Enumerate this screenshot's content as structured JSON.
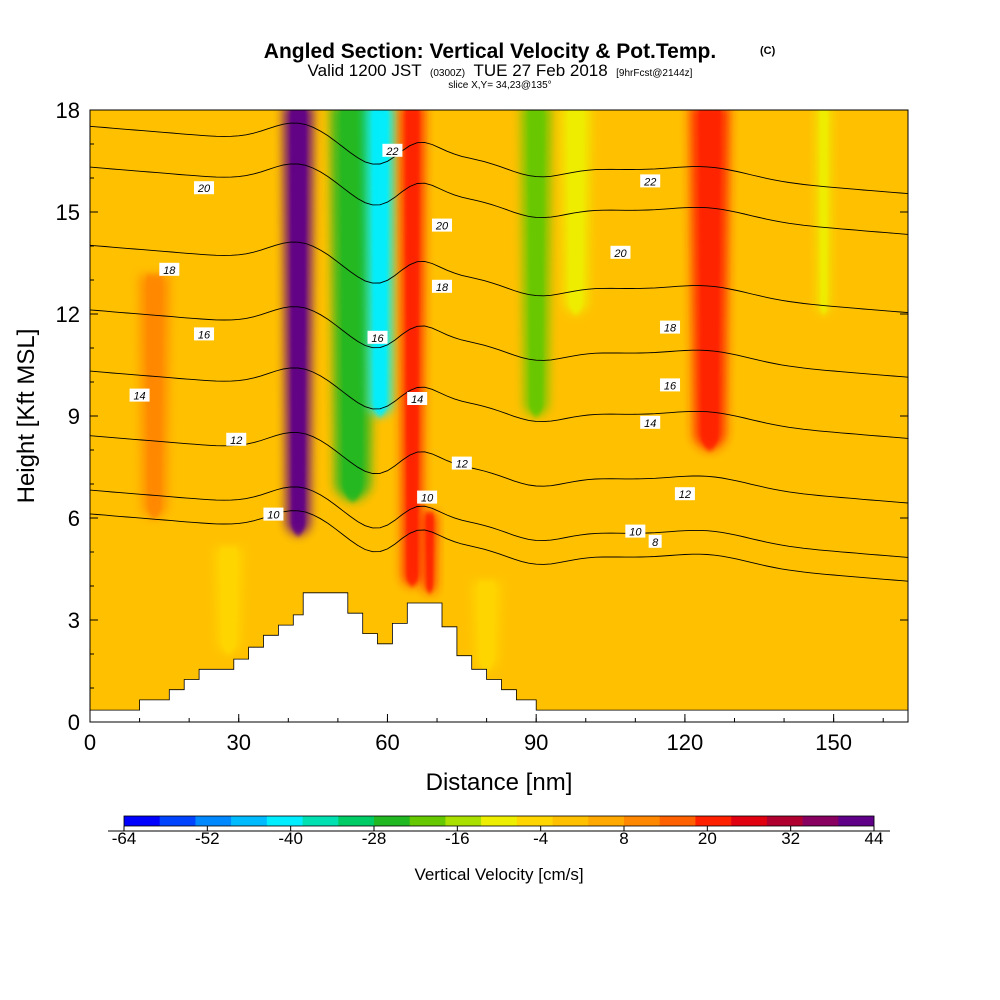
{
  "header": {
    "title": "Angled Section: Vertical Velocity & Pot.Temp.",
    "title_mark": "(C)",
    "valid_a": "Valid 1200 JST",
    "valid_b": "(0300Z)",
    "valid_c": "TUE 27 Feb 2018",
    "valid_d": "[9hrFcst@2144z]",
    "slice": "slice X,Y= 34,23@135°"
  },
  "chart_data": {
    "type": "heatmap",
    "xlabel": "Distance [nm]",
    "ylabel": "Height [Kft MSL]",
    "xlim": [
      0,
      165
    ],
    "ylim": [
      0,
      18
    ],
    "x_ticks": [
      0,
      30,
      60,
      90,
      120,
      150
    ],
    "y_ticks": [
      0,
      3,
      6,
      9,
      12,
      15,
      18
    ],
    "colorbar": {
      "title": "Vertical Velocity [cm/s]",
      "labels": [
        "-64",
        "-52",
        "-40",
        "-28",
        "-16",
        "-4",
        "8",
        "20",
        "32",
        "44"
      ],
      "min": -64,
      "max": 44,
      "colors": [
        "#0000ff",
        "#0044ff",
        "#0088ff",
        "#00bbff",
        "#00eeff",
        "#00e0b0",
        "#00cc66",
        "#22b822",
        "#66c800",
        "#aae000",
        "#eeee00",
        "#ffd600",
        "#ffc000",
        "#ffa800",
        "#ff8800",
        "#ff6000",
        "#ff2000",
        "#e00010",
        "#b00030",
        "#880060",
        "#600088"
      ]
    },
    "velocity_features": [
      {
        "x": 42,
        "w": 3,
        "z_bottom": 5.5,
        "z_top": 18,
        "value": 40
      },
      {
        "x": 53,
        "w": 4.5,
        "z_bottom": 6.5,
        "z_top": 18,
        "value": -28
      },
      {
        "x": 58.5,
        "w": 3,
        "z_bottom": 9,
        "z_top": 18,
        "value": -40
      },
      {
        "x": 65,
        "w": 2.5,
        "z_bottom": 4,
        "z_top": 18,
        "value": 22
      },
      {
        "x": 68.5,
        "w": 1.5,
        "z_bottom": 3.8,
        "z_top": 6,
        "value": 22
      },
      {
        "x": 90,
        "w": 3,
        "z_bottom": 9,
        "z_top": 18,
        "value": -22
      },
      {
        "x": 98,
        "w": 3,
        "z_bottom": 12,
        "z_top": 18,
        "value": -12
      },
      {
        "x": 125,
        "w": 4,
        "z_bottom": 8,
        "z_top": 18,
        "value": 22
      },
      {
        "x": 148,
        "w": 1.5,
        "z_bottom": 12,
        "z_top": 18,
        "value": -12
      },
      {
        "x": 13,
        "w": 3,
        "z_bottom": 6,
        "z_top": 13,
        "value": 12
      },
      {
        "x": 28,
        "w": 3,
        "z_bottom": 2,
        "z_top": 5,
        "value": -3
      },
      {
        "x": 80,
        "w": 3,
        "z_bottom": 1.5,
        "z_top": 4,
        "value": -3
      }
    ],
    "theta_levels": [
      {
        "level": 8,
        "label": "8",
        "base": 5.4
      },
      {
        "level": 10,
        "label": "10",
        "base": 6.1
      },
      {
        "level": 12,
        "label": "12",
        "base": 7.7
      },
      {
        "level": 14,
        "label": "14",
        "base": 9.6
      },
      {
        "level": 16,
        "label": "16",
        "base": 11.4
      },
      {
        "level": 18,
        "label": "18",
        "base": 13.3
      },
      {
        "level": 20,
        "label": "20",
        "base": 15.6
      },
      {
        "level": 22,
        "label": "22",
        "base": 16.8
      }
    ],
    "theta_label_positions": [
      {
        "label": "8",
        "x": 114,
        "y": 5.3
      },
      {
        "label": "10",
        "x": 37,
        "y": 6.1
      },
      {
        "label": "10",
        "x": 68,
        "y": 6.6
      },
      {
        "label": "10",
        "x": 110,
        "y": 5.6
      },
      {
        "label": "12",
        "x": 29.5,
        "y": 8.3
      },
      {
        "label": "12",
        "x": 75,
        "y": 7.6
      },
      {
        "label": "12",
        "x": 120,
        "y": 6.7
      },
      {
        "label": "14",
        "x": 10,
        "y": 9.6
      },
      {
        "label": "14",
        "x": 66,
        "y": 9.5
      },
      {
        "label": "14",
        "x": 113,
        "y": 8.8
      },
      {
        "label": "16",
        "x": 23,
        "y": 11.4
      },
      {
        "label": "16",
        "x": 58,
        "y": 11.3
      },
      {
        "label": "16",
        "x": 117,
        "y": 9.9
      },
      {
        "label": "18",
        "x": 16,
        "y": 13.3
      },
      {
        "label": "18",
        "x": 71,
        "y": 12.8
      },
      {
        "label": "18",
        "x": 117,
        "y": 11.6
      },
      {
        "label": "20",
        "x": 23,
        "y": 15.7
      },
      {
        "label": "20",
        "x": 71,
        "y": 14.6
      },
      {
        "label": "20",
        "x": 107,
        "y": 13.8
      },
      {
        "label": "22",
        "x": 61,
        "y": 16.8
      },
      {
        "label": "22",
        "x": 113,
        "y": 15.9
      }
    ],
    "terrain": [
      [
        0,
        0.35
      ],
      [
        10,
        0.35
      ],
      [
        10,
        0.65
      ],
      [
        16,
        0.65
      ],
      [
        16,
        0.95
      ],
      [
        19,
        0.95
      ],
      [
        19,
        1.25
      ],
      [
        22,
        1.25
      ],
      [
        22,
        1.55
      ],
      [
        29,
        1.55
      ],
      [
        29,
        1.85
      ],
      [
        32,
        1.85
      ],
      [
        32,
        2.2
      ],
      [
        35,
        2.2
      ],
      [
        35,
        2.55
      ],
      [
        38,
        2.55
      ],
      [
        38,
        2.85
      ],
      [
        41,
        2.85
      ],
      [
        41,
        3.15
      ],
      [
        43,
        3.15
      ],
      [
        43,
        3.8
      ],
      [
        52,
        3.8
      ],
      [
        52,
        3.2
      ],
      [
        55,
        3.2
      ],
      [
        55,
        2.6
      ],
      [
        58,
        2.6
      ],
      [
        58,
        2.3
      ],
      [
        61,
        2.3
      ],
      [
        61,
        2.9
      ],
      [
        64,
        2.9
      ],
      [
        64,
        3.5
      ],
      [
        71,
        3.5
      ],
      [
        71,
        2.8
      ],
      [
        74,
        2.8
      ],
      [
        74,
        1.95
      ],
      [
        77,
        1.95
      ],
      [
        77,
        1.55
      ],
      [
        80,
        1.55
      ],
      [
        80,
        1.25
      ],
      [
        83,
        1.25
      ],
      [
        83,
        0.95
      ],
      [
        86,
        0.95
      ],
      [
        86,
        0.65
      ],
      [
        90,
        0.65
      ],
      [
        90,
        0.35
      ],
      [
        165,
        0.35
      ]
    ]
  }
}
